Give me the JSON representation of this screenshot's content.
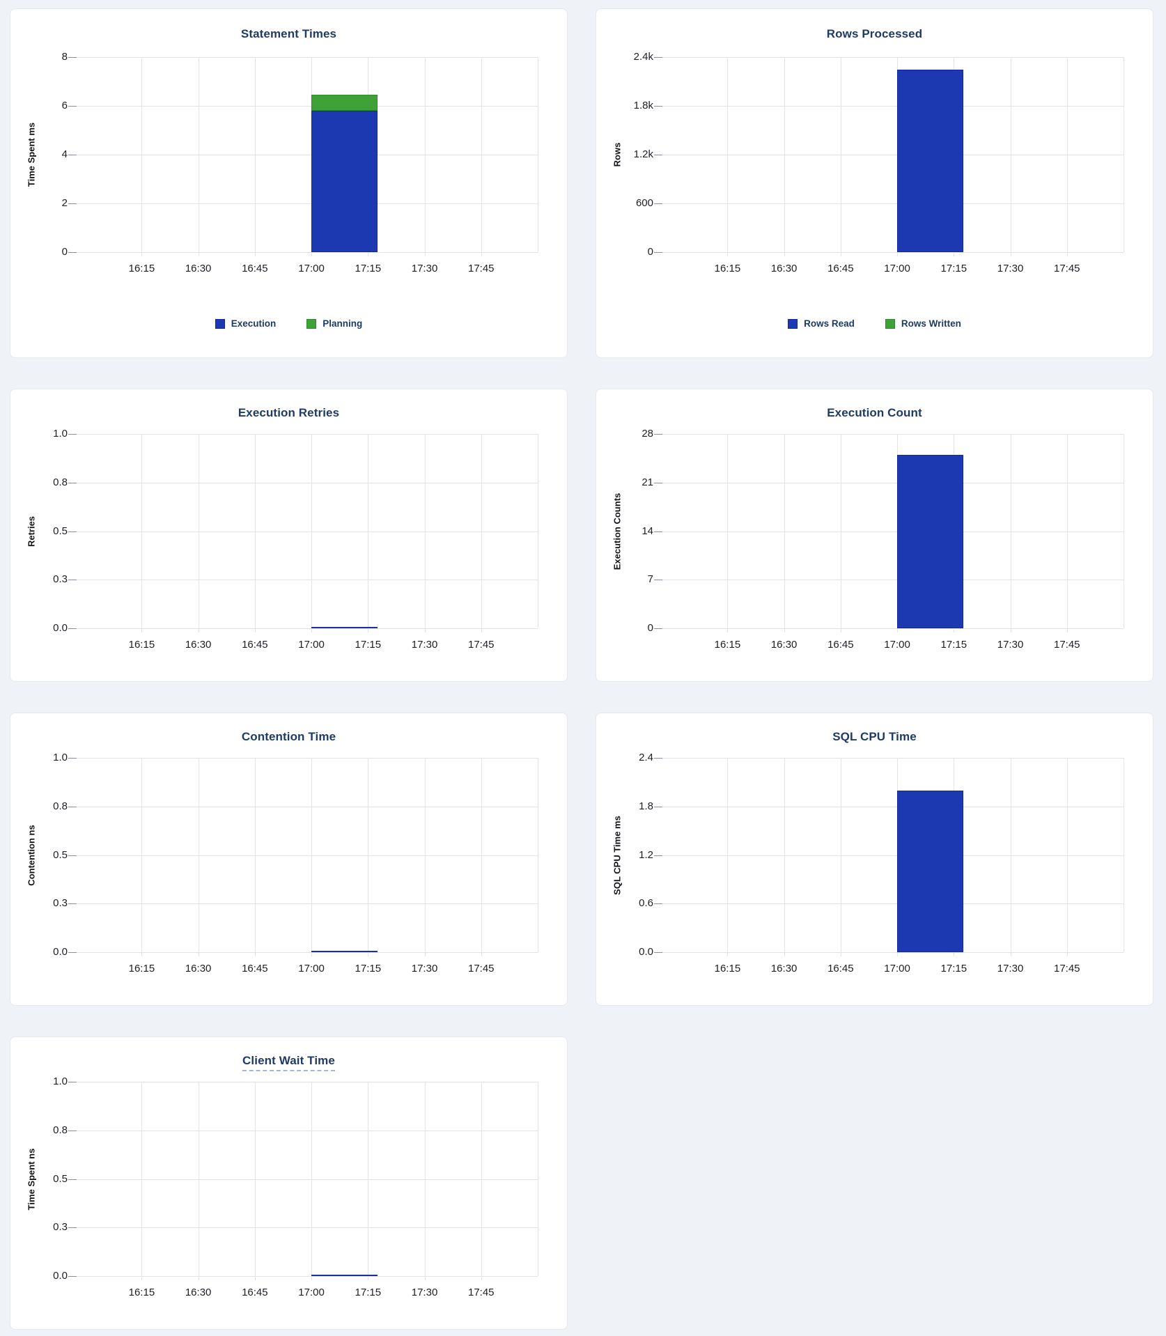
{
  "colors": {
    "page_background": "#eff2f6",
    "panel_background": "#ffffff",
    "panel_border": "#e5e8ed",
    "title_text": "#1e3a66",
    "axis_text": "#1b1e23",
    "gridline": "#e2e3e6",
    "tick_stub": "#8c8f94",
    "blue": "#1d39b1",
    "blue_border": "#1526a5",
    "green": "#3fa239",
    "green_border": "#2c8a28",
    "flat_line": "#1c2fab",
    "tooltip_underline": "#a6b7cc"
  },
  "chart_data": [
    {
      "type": "bar",
      "title": "Statement Times",
      "ylabel": "Time Spent ms",
      "y_max": 8,
      "ylim": [
        0,
        8
      ],
      "y_tick_labels": [
        "8",
        "6",
        "4",
        "2",
        "0"
      ],
      "x_tick_labels": [
        "16:15",
        "16:30",
        "16:45",
        "17:00",
        "17:15",
        "17:30",
        "17:45"
      ],
      "bar": {
        "x_from": "17:00",
        "x_to": "17:15",
        "segments": [
          {
            "name": "Execution",
            "color": "blue",
            "value": 5.8
          },
          {
            "name": "Planning",
            "color": "green",
            "value": 0.65
          }
        ]
      },
      "legend": [
        {
          "label": "Execution",
          "color": "blue"
        },
        {
          "label": "Planning",
          "color": "green"
        }
      ]
    },
    {
      "type": "bar",
      "title": "Rows Processed",
      "ylabel": "Rows",
      "y_max": 2400,
      "ylim": [
        0,
        2400
      ],
      "y_tick_labels": [
        "2.4k",
        "1.8k",
        "1.2k",
        "600",
        "0"
      ],
      "x_tick_labels": [
        "16:15",
        "16:30",
        "16:45",
        "17:00",
        "17:15",
        "17:30",
        "17:45"
      ],
      "bar": {
        "x_from": "17:00",
        "x_to": "17:15",
        "segments": [
          {
            "name": "Rows Read",
            "color": "blue",
            "value": 2250
          },
          {
            "name": "Rows Written",
            "color": "green",
            "value": 0
          }
        ]
      },
      "legend": [
        {
          "label": "Rows Read",
          "color": "blue"
        },
        {
          "label": "Rows Written",
          "color": "green"
        }
      ]
    },
    {
      "type": "line",
      "title": "Execution Retries",
      "ylabel": "Retries",
      "y_max": 1,
      "ylim": [
        0,
        1
      ],
      "y_tick_labels": [
        "1.0",
        "0.8",
        "0.5",
        "0.3",
        "0.0"
      ],
      "x_tick_labels": [
        "16:15",
        "16:30",
        "16:45",
        "17:00",
        "17:15",
        "17:30",
        "17:45"
      ],
      "line": {
        "x_from": "17:00",
        "x_to": "17:15",
        "value": 0,
        "color": "flat_line"
      }
    },
    {
      "type": "bar",
      "title": "Execution Count",
      "ylabel": "Execution Counts",
      "y_max": 28,
      "ylim": [
        0,
        28
      ],
      "y_tick_labels": [
        "28",
        "21",
        "14",
        "7",
        "0"
      ],
      "x_tick_labels": [
        "16:15",
        "16:30",
        "16:45",
        "17:00",
        "17:15",
        "17:30",
        "17:45"
      ],
      "bar": {
        "x_from": "17:00",
        "x_to": "17:15",
        "segments": [
          {
            "color": "blue",
            "value": 25
          }
        ]
      }
    },
    {
      "type": "line",
      "title": "Contention Time",
      "ylabel": "Contention ns",
      "y_max": 1,
      "ylim": [
        0,
        1
      ],
      "y_tick_labels": [
        "1.0",
        "0.8",
        "0.5",
        "0.3",
        "0.0"
      ],
      "x_tick_labels": [
        "16:15",
        "16:30",
        "16:45",
        "17:00",
        "17:15",
        "17:30",
        "17:45"
      ],
      "line": {
        "x_from": "17:00",
        "x_to": "17:15",
        "value": 0,
        "color": "flat_line"
      }
    },
    {
      "type": "bar",
      "title": "SQL CPU Time",
      "ylabel": "SQL CPU Time ms",
      "y_max": 2.4,
      "ylim": [
        0,
        2.4
      ],
      "y_tick_labels": [
        "2.4",
        "1.8",
        "1.2",
        "0.6",
        "0.0"
      ],
      "x_tick_labels": [
        "16:15",
        "16:30",
        "16:45",
        "17:00",
        "17:15",
        "17:30",
        "17:45"
      ],
      "bar": {
        "x_from": "17:00",
        "x_to": "17:15",
        "segments": [
          {
            "color": "blue",
            "value": 2.0
          }
        ]
      }
    },
    {
      "type": "line",
      "title": "Client Wait Time",
      "title_tooltip": true,
      "ylabel": "Time Spent ns",
      "y_max": 1,
      "ylim": [
        0,
        1
      ],
      "y_tick_labels": [
        "1.0",
        "0.8",
        "0.5",
        "0.3",
        "0.0"
      ],
      "x_tick_labels": [
        "16:15",
        "16:30",
        "16:45",
        "17:00",
        "17:15",
        "17:30",
        "17:45"
      ],
      "line": {
        "x_from": "17:00",
        "x_to": "17:15",
        "value": 0,
        "color": "flat_line"
      }
    }
  ]
}
